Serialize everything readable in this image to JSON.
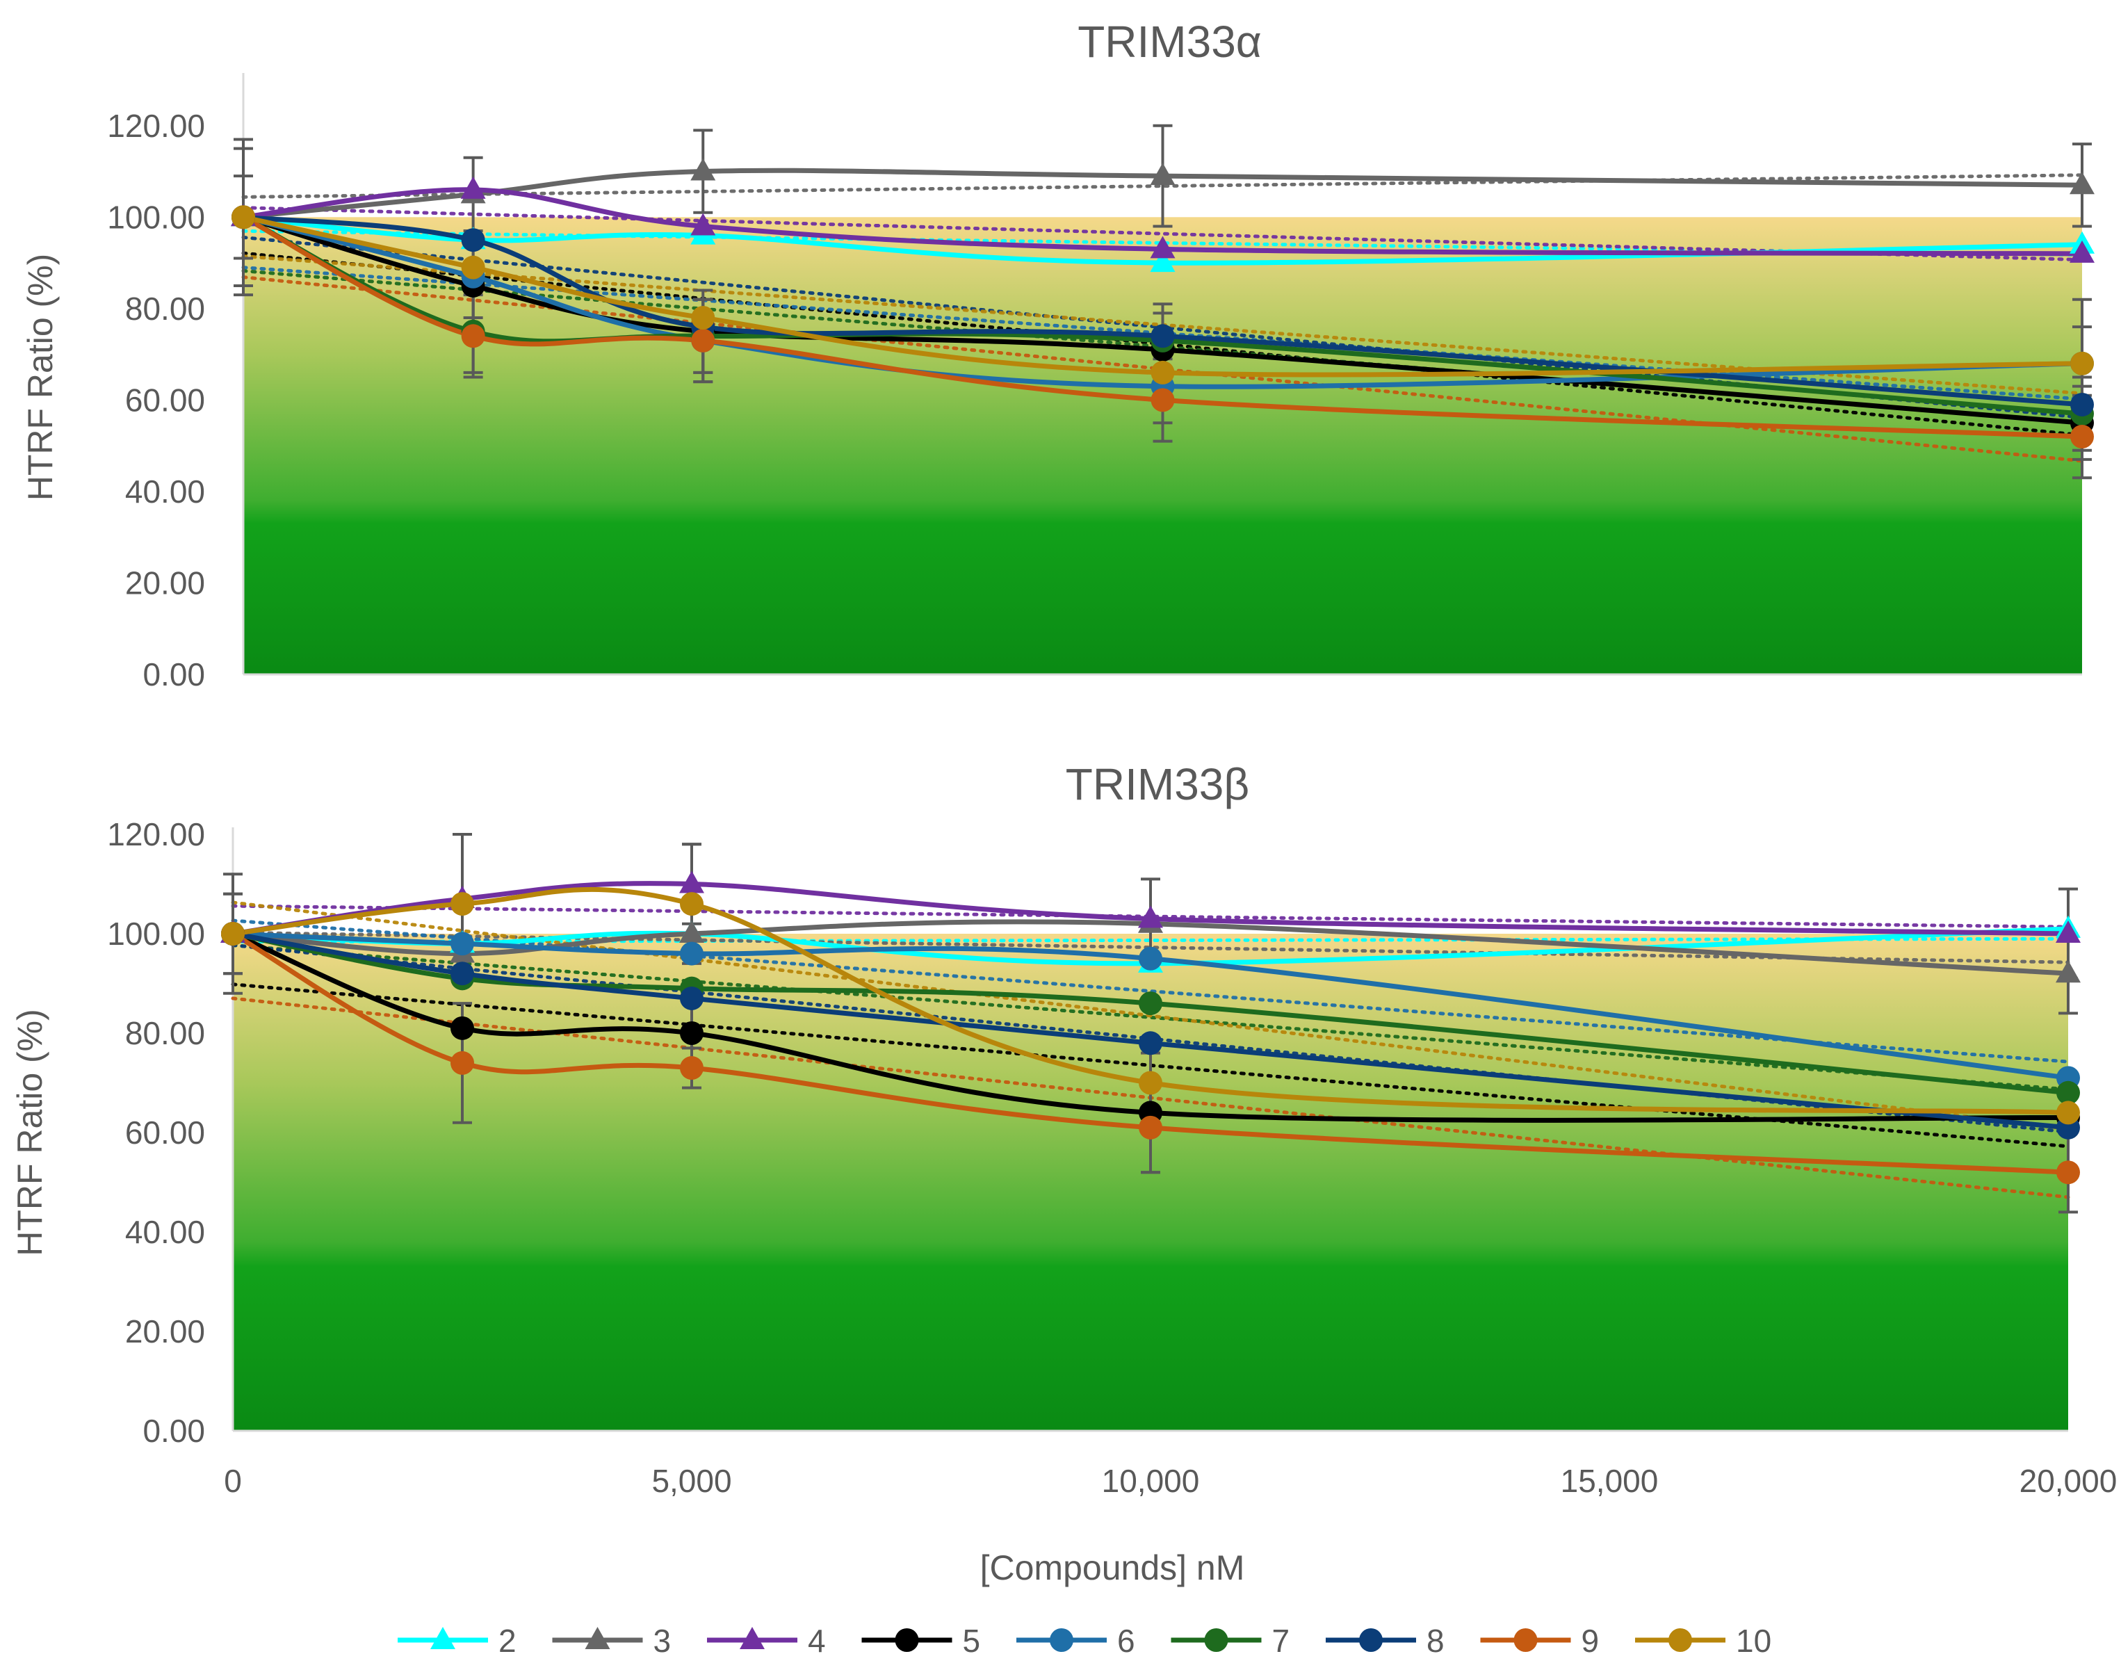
{
  "x_axis": {
    "label": "[Compounds] nM",
    "ticks": [
      0,
      5000,
      10000,
      15000,
      20000
    ],
    "tick_labels": [
      "0",
      "5,000",
      "10,000",
      "15,000",
      "20,000"
    ],
    "range": [
      0,
      20000
    ]
  },
  "legend": {
    "placement": "bottom",
    "entries": [
      {
        "label": "2",
        "color": "#00FFFF",
        "marker": "triangle"
      },
      {
        "label": "3",
        "color": "#666666",
        "marker": "triangle"
      },
      {
        "label": "4",
        "color": "#7030A0",
        "marker": "triangle"
      },
      {
        "label": "5",
        "color": "#000000",
        "marker": "circle"
      },
      {
        "label": "6",
        "color": "#1F6FA8",
        "marker": "circle"
      },
      {
        "label": "7",
        "color": "#1E6B1E",
        "marker": "circle"
      },
      {
        "label": "8",
        "color": "#0B3D78",
        "marker": "circle"
      },
      {
        "label": "9",
        "color": "#C55A11",
        "marker": "circle"
      },
      {
        "label": "10",
        "color": "#B8860B",
        "marker": "circle"
      }
    ]
  },
  "chart_data": [
    {
      "type": "line",
      "title": "TRIM33α",
      "xlabel": "[Compounds] nM",
      "ylabel": "HTRF Ratio (%)",
      "ylim": [
        0,
        130
      ],
      "yticks": [
        0,
        20,
        40,
        60,
        80,
        100,
        120
      ],
      "ytick_labels": [
        "0.00",
        "20.00",
        "40.00",
        "60.00",
        "80.00",
        "100.00",
        "120.00"
      ],
      "x": [
        0,
        2500,
        5000,
        10000,
        20000
      ],
      "background": "green-to-yellow gradient band from 0 to 100",
      "trendlines": "dotted linear trendline per series",
      "series": [
        {
          "name": "2",
          "values": [
            100,
            95,
            96,
            90,
            94
          ],
          "errors": [
            0,
            0,
            0,
            0,
            0
          ]
        },
        {
          "name": "3",
          "values": [
            100,
            105,
            110,
            109,
            107
          ],
          "errors": [
            17,
            8,
            9,
            11,
            9
          ]
        },
        {
          "name": "4",
          "values": [
            100,
            106,
            98,
            93,
            92
          ],
          "errors": [
            0,
            0,
            0,
            0,
            0
          ]
        },
        {
          "name": "5",
          "values": [
            100,
            85,
            75,
            71,
            55
          ],
          "errors": [
            9,
            9,
            9,
            8,
            8
          ]
        },
        {
          "name": "6",
          "values": [
            100,
            87,
            73,
            63,
            68
          ],
          "errors": [
            0,
            9,
            9,
            8,
            8
          ]
        },
        {
          "name": "7",
          "values": [
            100,
            75,
            74,
            73,
            57
          ],
          "errors": [
            0,
            9,
            8,
            8,
            8
          ]
        },
        {
          "name": "8",
          "values": [
            100,
            95,
            76,
            74,
            59
          ],
          "errors": [
            0,
            0,
            0,
            0,
            0
          ]
        },
        {
          "name": "9",
          "values": [
            100,
            74,
            73,
            60,
            52
          ],
          "errors": [
            15,
            9,
            9,
            9,
            9
          ]
        },
        {
          "name": "10",
          "values": [
            100,
            89,
            78,
            66,
            68
          ],
          "errors": [
            0,
            0,
            0,
            0,
            14
          ]
        }
      ]
    },
    {
      "type": "line",
      "title": "TRIM33β",
      "xlabel": "[Compounds] nM",
      "ylabel": "HTRF Ratio (%)",
      "ylim": [
        0,
        120
      ],
      "yticks": [
        0,
        20,
        40,
        60,
        80,
        100,
        120
      ],
      "ytick_labels": [
        "0.00",
        "20.00",
        "40.00",
        "60.00",
        "80.00",
        "100.00",
        "120.00"
      ],
      "x": [
        0,
        2500,
        5000,
        10000,
        20000
      ],
      "background": "green-to-yellow gradient band from 0 to 100",
      "trendlines": "dotted linear trendline per series",
      "series": [
        {
          "name": "2",
          "values": [
            100,
            98,
            100,
            94,
            101
          ],
          "errors": [
            0,
            0,
            0,
            0,
            0
          ]
        },
        {
          "name": "3",
          "values": [
            100,
            96,
            100,
            102,
            92
          ],
          "errors": [
            12,
            0,
            0,
            0,
            8
          ]
        },
        {
          "name": "4",
          "values": [
            100,
            107,
            110,
            103,
            100
          ],
          "errors": [
            0,
            0,
            8,
            8,
            9
          ]
        },
        {
          "name": "5",
          "values": [
            100,
            81,
            80,
            64,
            63
          ],
          "errors": [
            8,
            0,
            8,
            12,
            0
          ]
        },
        {
          "name": "6",
          "values": [
            100,
            98,
            96,
            95,
            71
          ],
          "errors": [
            0,
            0,
            0,
            0,
            0
          ]
        },
        {
          "name": "7",
          "values": [
            100,
            91,
            89,
            86,
            68
          ],
          "errors": [
            0,
            0,
            0,
            0,
            0
          ]
        },
        {
          "name": "8",
          "values": [
            100,
            92,
            87,
            78,
            61
          ],
          "errors": [
            0,
            0,
            0,
            0,
            0
          ]
        },
        {
          "name": "9",
          "values": [
            100,
            74,
            73,
            61,
            52
          ],
          "errors": [
            8,
            12,
            4,
            9,
            8
          ]
        },
        {
          "name": "10",
          "values": [
            100,
            106,
            106,
            70,
            64
          ],
          "errors": [
            0,
            14,
            12,
            0,
            0
          ]
        }
      ]
    }
  ]
}
